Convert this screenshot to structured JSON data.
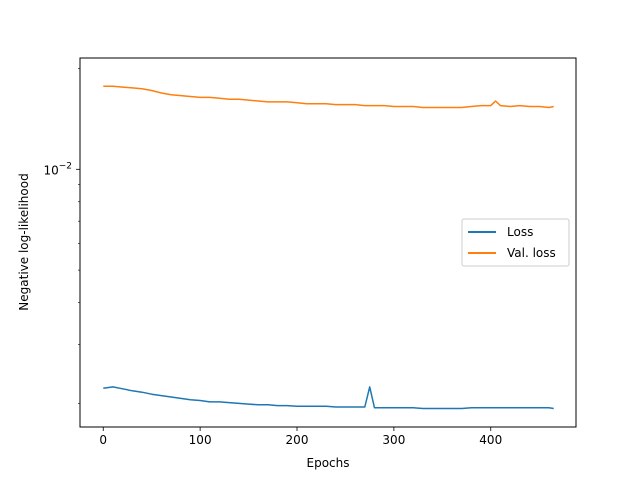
{
  "chart_data": {
    "type": "line",
    "title": "",
    "xlabel": "Epochs",
    "ylabel": "Negative log-likelihood",
    "yscale": "log",
    "xlim": [
      -24,
      488
    ],
    "ylim": [
      0.0017,
      0.0215
    ],
    "xticks": [
      0,
      100,
      200,
      300,
      400
    ],
    "yticks": [
      {
        "value": 0.01,
        "base": "10",
        "exponent": "−2"
      }
    ],
    "grid": false,
    "legend": {
      "position": "center-right"
    },
    "series": [
      {
        "name": "Loss",
        "color": "#1f77b4",
        "x": [
          0,
          10,
          20,
          30,
          40,
          50,
          60,
          70,
          80,
          90,
          100,
          110,
          120,
          130,
          140,
          150,
          160,
          170,
          180,
          190,
          200,
          210,
          220,
          230,
          240,
          250,
          260,
          270,
          275,
          280,
          290,
          300,
          310,
          320,
          330,
          340,
          350,
          360,
          370,
          380,
          390,
          400,
          410,
          420,
          430,
          440,
          450,
          460,
          465
        ],
        "y": [
          0.00222,
          0.00224,
          0.00221,
          0.00218,
          0.00216,
          0.00213,
          0.00211,
          0.00209,
          0.00207,
          0.00205,
          0.00204,
          0.00202,
          0.00202,
          0.00201,
          0.002,
          0.00199,
          0.00198,
          0.00198,
          0.00197,
          0.00197,
          0.00196,
          0.00196,
          0.00196,
          0.00196,
          0.00195,
          0.00195,
          0.00195,
          0.00195,
          0.00224,
          0.00194,
          0.00194,
          0.00194,
          0.00194,
          0.00194,
          0.00193,
          0.00193,
          0.00193,
          0.00193,
          0.00193,
          0.00194,
          0.00194,
          0.00194,
          0.00194,
          0.00194,
          0.00194,
          0.00194,
          0.00194,
          0.00194,
          0.00193
        ]
      },
      {
        "name": "Val. loss",
        "color": "#ff7f0e",
        "x": [
          0,
          10,
          20,
          30,
          40,
          50,
          60,
          70,
          80,
          90,
          100,
          110,
          120,
          130,
          140,
          150,
          160,
          170,
          180,
          190,
          200,
          210,
          220,
          230,
          240,
          250,
          260,
          270,
          280,
          290,
          300,
          310,
          320,
          330,
          340,
          350,
          360,
          370,
          380,
          390,
          400,
          405,
          410,
          420,
          430,
          440,
          450,
          460,
          465
        ],
        "y": [
          0.0177,
          0.0177,
          0.0176,
          0.0175,
          0.0174,
          0.0172,
          0.0169,
          0.0167,
          0.0166,
          0.0165,
          0.0164,
          0.0164,
          0.0163,
          0.0162,
          0.0162,
          0.0161,
          0.016,
          0.0159,
          0.0159,
          0.0159,
          0.0158,
          0.0157,
          0.0157,
          0.0157,
          0.0156,
          0.0156,
          0.0156,
          0.0155,
          0.0155,
          0.0155,
          0.0154,
          0.0154,
          0.0154,
          0.0153,
          0.0153,
          0.0153,
          0.0153,
          0.0153,
          0.0154,
          0.0155,
          0.0155,
          0.016,
          0.0155,
          0.0154,
          0.0155,
          0.0154,
          0.0154,
          0.0153,
          0.0154
        ]
      }
    ]
  }
}
